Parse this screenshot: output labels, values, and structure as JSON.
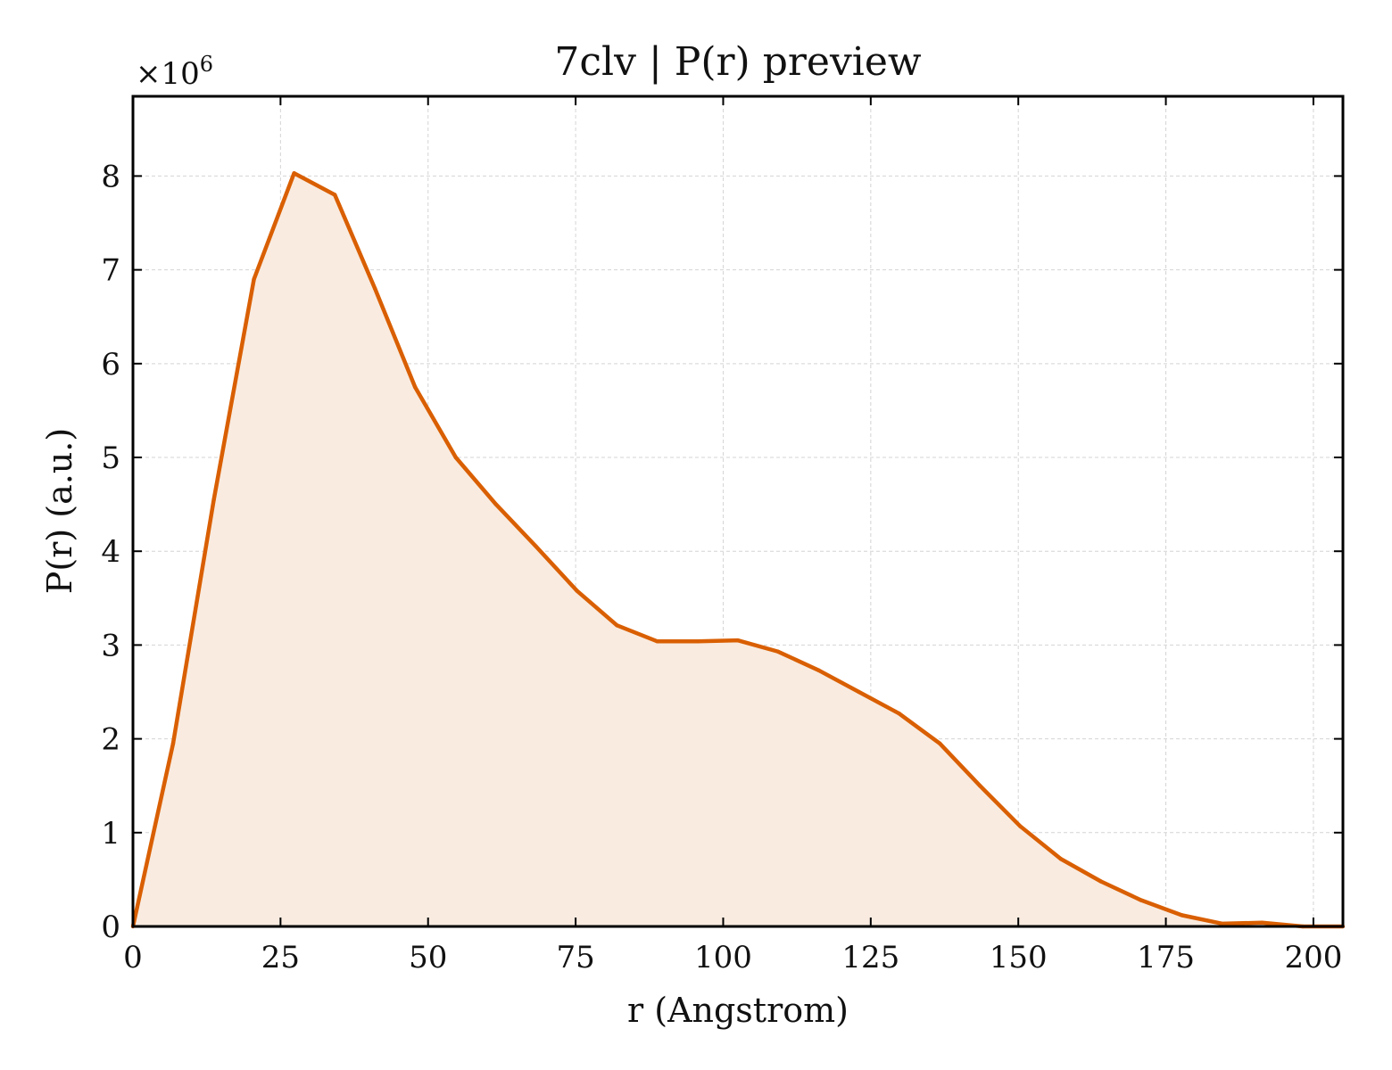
{
  "chart_data": {
    "type": "area",
    "title": "7clv | P(r) preview",
    "xlabel": "r (Angstrom)",
    "ylabel": "P(r) (a.u.)",
    "y_offset_base": "×10",
    "y_offset_exponent": "6",
    "xlim": [
      0,
      205
    ],
    "ylim": [
      0,
      8.85
    ],
    "xticks": [
      0,
      25,
      50,
      75,
      100,
      125,
      150,
      175,
      200
    ],
    "yticks": [
      0,
      1,
      2,
      3,
      4,
      5,
      6,
      7,
      8
    ],
    "grid": true,
    "line_color": "#d95f02",
    "fill_color": "#f9ebe0",
    "series": [
      {
        "x": [
          0,
          6.8,
          13.7,
          20.5,
          27.3,
          34.2,
          41.0,
          47.8,
          54.7,
          61.5,
          68.3,
          75.2,
          82.0,
          88.8,
          95.7,
          102.5,
          109.3,
          116.2,
          123.0,
          129.8,
          136.7,
          143.5,
          150.3,
          157.2,
          164.0,
          170.8,
          177.7,
          184.5,
          191.3,
          198.2,
          205.0
        ],
        "y": [
          0.0,
          1.95,
          4.55,
          6.9,
          8.03,
          7.8,
          6.8,
          5.75,
          5.0,
          4.5,
          4.05,
          3.58,
          3.21,
          3.04,
          3.04,
          3.05,
          2.93,
          2.73,
          2.5,
          2.27,
          1.95,
          1.5,
          1.07,
          0.72,
          0.48,
          0.28,
          0.12,
          0.03,
          0.04,
          0.0,
          0.0
        ]
      }
    ]
  }
}
